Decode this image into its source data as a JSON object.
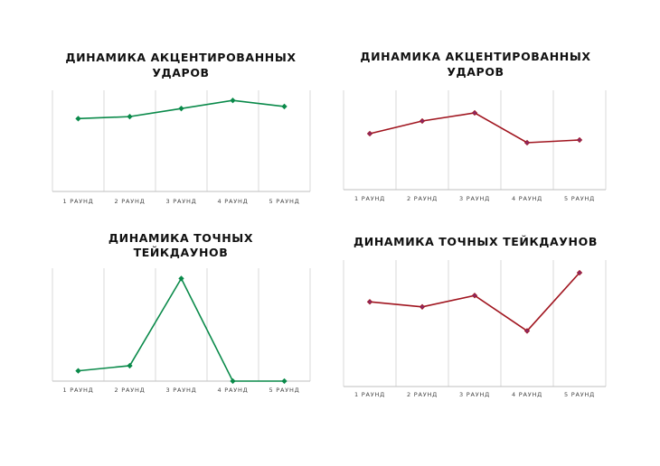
{
  "colors": {
    "green": "#0a8a4a",
    "red": "#a0141e",
    "grid": "#d9d9d9",
    "axis": "#bfbfbf"
  },
  "chart_data": [
    {
      "type": "line",
      "title": [
        "ДИНАМИКА АКЦЕНТИРОВАННЫХ",
        "УДАРОВ"
      ],
      "categories": [
        "1 РАУНД",
        "2 РАУНД",
        "3 РАУНД",
        "4 РАУНД",
        "5 РАУНД"
      ],
      "series": [
        {
          "values": [
            7.2,
            7.4,
            8.2,
            9.0,
            8.4
          ]
        }
      ],
      "ylim": [
        0,
        10
      ],
      "grid": "vertical",
      "color": "#0a8a4a"
    },
    {
      "type": "line",
      "title": [
        "ДИНАМИКА АКЦЕНТИРОВАННЫХ",
        "УДАРОВ"
      ],
      "categories": [
        "1 РАУНД",
        "2 РАУНД",
        "3 РАУНД",
        "4 РАУНД",
        "5 РАУНД"
      ],
      "series": [
        {
          "values": [
            6.2,
            7.6,
            8.5,
            5.2,
            5.5
          ]
        }
      ],
      "ylim": [
        0,
        11
      ],
      "grid": "vertical",
      "color": "#a0141e"
    },
    {
      "type": "line",
      "title": [
        "ДИНАМИКА ТОЧНЫХ",
        "ТЕЙКДАУНОВ"
      ],
      "categories": [
        "1 РАУНД",
        "2 РАУНД",
        "3 РАУНД",
        "4 РАУНД",
        "5 РАУНД"
      ],
      "series": [
        {
          "values": [
            1.0,
            1.5,
            10.0,
            0.0,
            0.0
          ]
        }
      ],
      "ylim": [
        0,
        11
      ],
      "grid": "vertical",
      "color": "#0a8a4a"
    },
    {
      "type": "line",
      "title": [
        "ДИНАМИКА ТОЧНЫХ ТЕЙКДАУНОВ"
      ],
      "categories": [
        "1 РАУНД",
        "2 РАУНД",
        "3 РАУНД",
        "4 РАУНД",
        "5 РАУНД"
      ],
      "series": [
        {
          "values": [
            6.7,
            6.3,
            7.2,
            4.4,
            9.0
          ]
        }
      ],
      "ylim": [
        0,
        10
      ],
      "grid": "vertical",
      "color": "#a0141e"
    }
  ]
}
